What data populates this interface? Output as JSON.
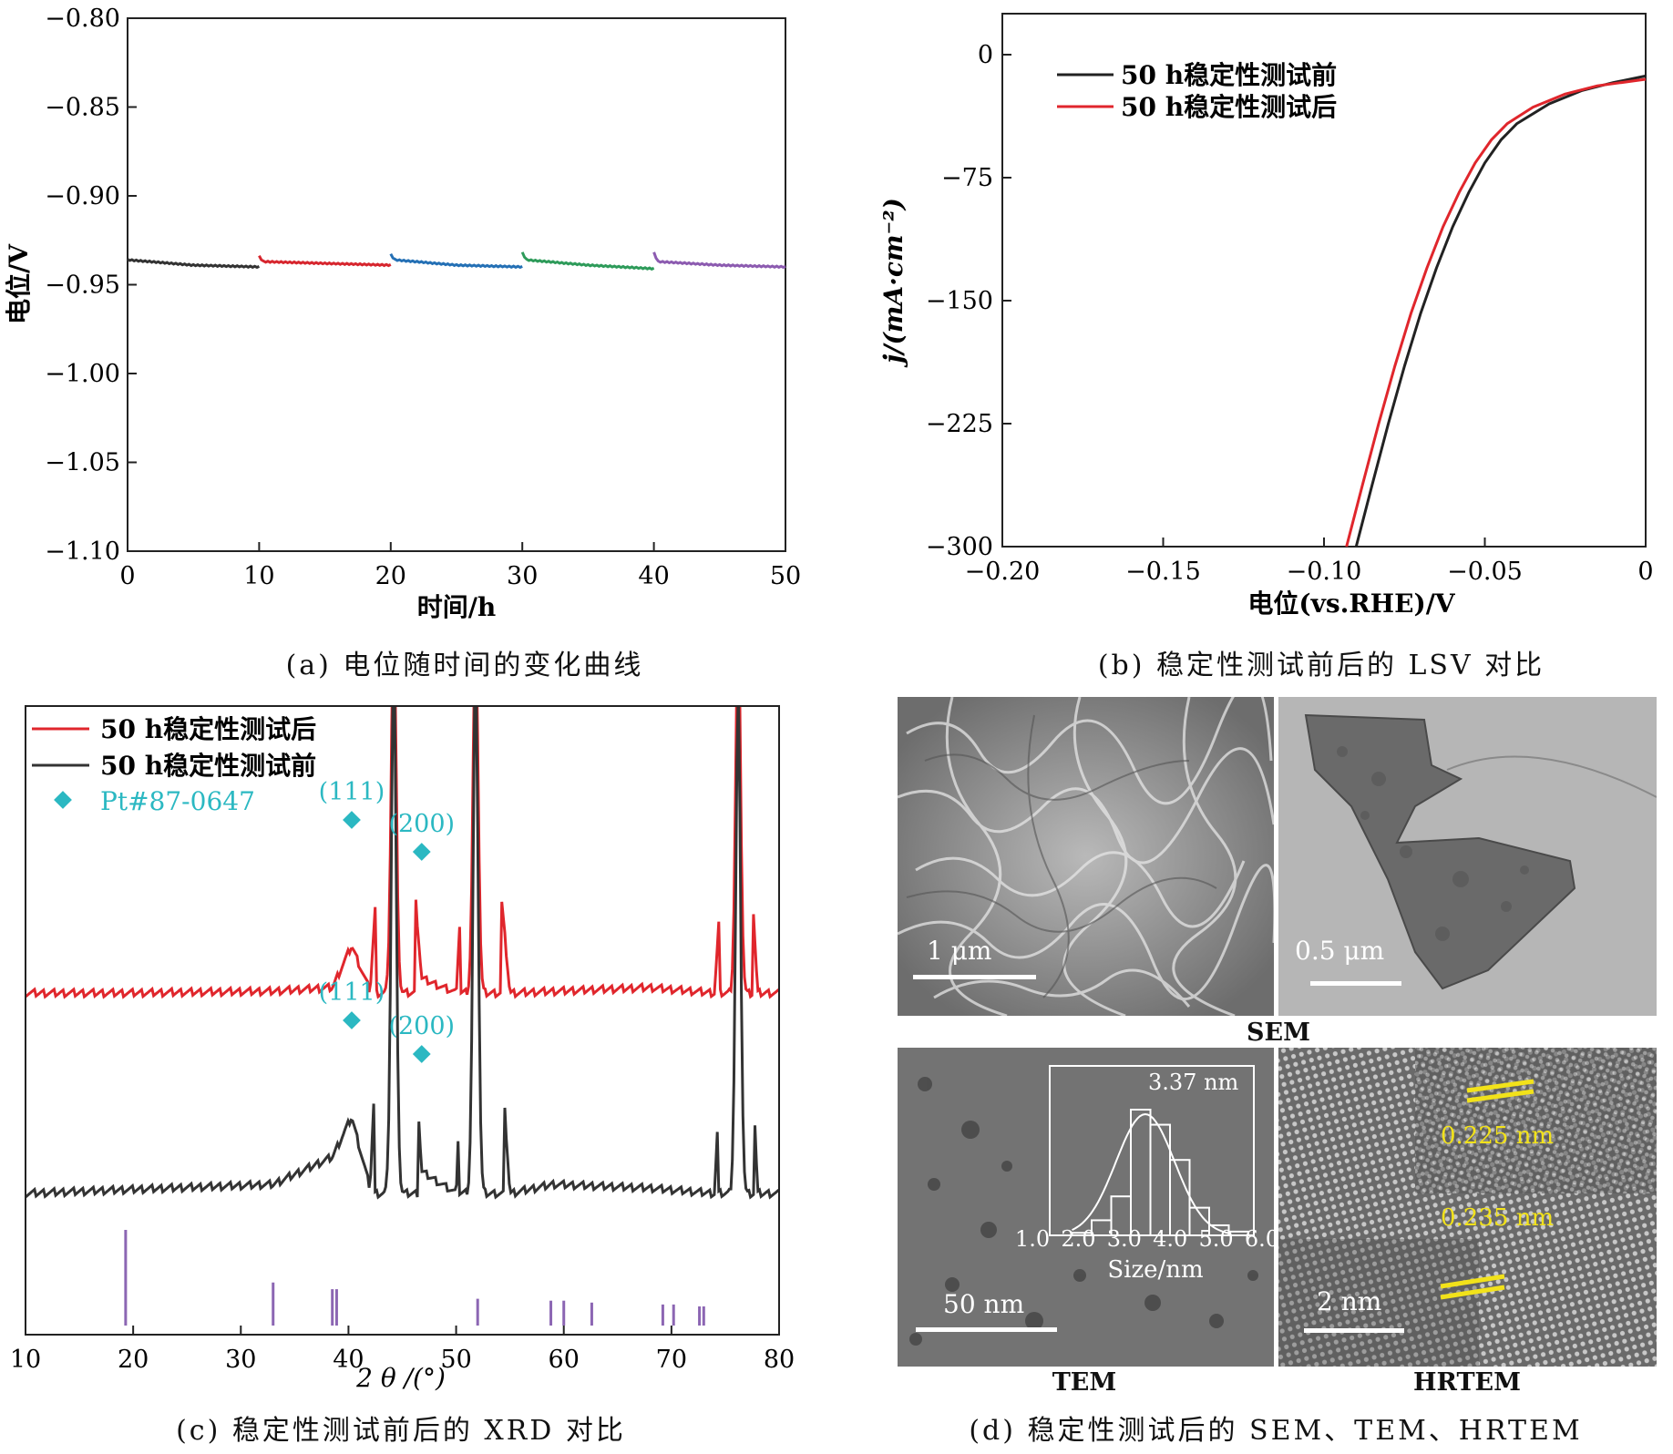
{
  "captions": {
    "a": "(a) 电位随时间的变化曲线",
    "b": "(b) 稳定性测试前后的 LSV 对比",
    "c": "(c) 稳定性测试前后的 XRD 对比",
    "d": "(d) 稳定性测试后的 SEM、TEM、HRTEM"
  },
  "chart_data": [
    {
      "id": "a",
      "type": "line",
      "xlabel": "时间/h",
      "ylabel": "电位/V",
      "xlim": [
        0,
        50
      ],
      "ylim": [
        -1.1,
        -0.8
      ],
      "xticks": [
        0,
        10,
        20,
        30,
        40,
        50
      ],
      "xtick_labels": [
        "0",
        "10",
        "20",
        "30",
        "40",
        "50"
      ],
      "yticks": [
        -0.8,
        -0.85,
        -0.9,
        -0.95,
        -1.0,
        -1.05,
        -1.1
      ],
      "ytick_labels": [
        "−0.80",
        "−0.85",
        "−0.90",
        "−0.95",
        "−1.00",
        "−1.05",
        "−1.10"
      ],
      "series": [
        {
          "color": "#333333",
          "x": [
            0,
            5,
            10
          ],
          "y": [
            -0.936,
            -0.939,
            -0.94
          ]
        },
        {
          "color": "#d7262e",
          "x": [
            10,
            10.3,
            15,
            20
          ],
          "y": [
            -0.934,
            -0.937,
            -0.938,
            -0.939
          ]
        },
        {
          "color": "#2470b5",
          "x": [
            20,
            20.3,
            25,
            30
          ],
          "y": [
            -0.933,
            -0.936,
            -0.939,
            -0.94
          ]
        },
        {
          "color": "#2e9b5a",
          "x": [
            30,
            30.3,
            35,
            40
          ],
          "y": [
            -0.932,
            -0.936,
            -0.939,
            -0.941
          ]
        },
        {
          "color": "#8c5bb0",
          "x": [
            40,
            40.3,
            45,
            50
          ],
          "y": [
            -0.932,
            -0.937,
            -0.939,
            -0.94
          ]
        }
      ]
    },
    {
      "id": "b",
      "type": "line",
      "xlabel": "电位(vs.RHE)/V",
      "ylabel": "j/(mA·cm⁻²)",
      "xlim": [
        -0.2,
        0
      ],
      "ylim": [
        -300,
        25
      ],
      "xticks": [
        -0.2,
        -0.15,
        -0.1,
        -0.05,
        0
      ],
      "xtick_labels": [
        "−0.20",
        "−0.15",
        "−0.10",
        "−0.05",
        "0"
      ],
      "yticks": [
        0,
        -75,
        -150,
        -225,
        -300
      ],
      "ytick_labels": [
        "0",
        "−75",
        "−150",
        "−225",
        "−300"
      ],
      "legend": "top-left",
      "series": [
        {
          "name": "50 h稳定性测试前",
          "color": "#222222",
          "x": [
            -0.09,
            -0.085,
            -0.08,
            -0.075,
            -0.07,
            -0.065,
            -0.06,
            -0.055,
            -0.05,
            -0.045,
            -0.04,
            -0.03,
            -0.02,
            -0.01,
            0
          ],
          "y": [
            -300,
            -262,
            -225,
            -190,
            -158,
            -130,
            -105,
            -84,
            -66,
            -52,
            -42,
            -30,
            -22,
            -17,
            -13
          ]
        },
        {
          "name": "50 h稳定性测试后",
          "color": "#e0262c",
          "x": [
            -0.093,
            -0.088,
            -0.083,
            -0.078,
            -0.073,
            -0.068,
            -0.063,
            -0.058,
            -0.053,
            -0.048,
            -0.043,
            -0.035,
            -0.025,
            -0.015,
            0
          ],
          "y": [
            -300,
            -262,
            -225,
            -190,
            -158,
            -130,
            -105,
            -84,
            -66,
            -52,
            -42,
            -32,
            -24,
            -19,
            -15
          ]
        }
      ]
    },
    {
      "id": "c",
      "type": "line",
      "xlabel": "2 θ /(°)",
      "xlim": [
        10,
        80
      ],
      "xticks": [
        10,
        20,
        30,
        40,
        50,
        60,
        70,
        80
      ],
      "xtick_labels": [
        "10",
        "20",
        "30",
        "40",
        "50",
        "60",
        "70",
        "80"
      ],
      "legend": "top-left",
      "series": [
        {
          "name": "50 h稳定性测试后",
          "color": "#e0262c",
          "x": [
            10,
            19,
            33,
            38.5,
            40.3,
            42,
            44.2,
            46.8,
            50,
            51.8,
            55,
            68,
            74,
            76.2,
            78,
            80
          ],
          "y": [
            0.92,
            0.92,
            0.93,
            0.95,
            1.18,
            0.93,
            3.0,
            1.0,
            0.92,
            3.0,
            0.92,
            0.95,
            0.92,
            3.0,
            0.92,
            0.92
          ]
        },
        {
          "name": "50 h稳定性测试前",
          "color": "#333333",
          "x": [
            10,
            19,
            33,
            38.5,
            40.3,
            42,
            44.2,
            46.8,
            50,
            51.8,
            55,
            59,
            68,
            74,
            76.2,
            78,
            80
          ],
          "y": [
            0.0,
            0.02,
            0.05,
            0.2,
            0.42,
            0.03,
            3.0,
            0.12,
            0.0,
            3.0,
            0.0,
            0.05,
            0.03,
            0.0,
            2.8,
            0.0,
            0.0
          ]
        }
      ],
      "reference": {
        "name": "Pt#87-0647",
        "color": "#8c66b3",
        "x": [
          19.3,
          33.0,
          38.5,
          38.9,
          52.0,
          58.8,
          60.0,
          62.6,
          69.2,
          70.2,
          72.6,
          73.0
        ],
        "intensity": [
          1.0,
          0.45,
          0.38,
          0.38,
          0.28,
          0.26,
          0.26,
          0.24,
          0.22,
          0.22,
          0.2,
          0.2
        ]
      },
      "markers": [
        {
          "label": "(111)",
          "x": 40.3,
          "series": "50 h稳定性测试后"
        },
        {
          "label": "(200)",
          "x": 46.8,
          "series": "50 h稳定性测试后"
        },
        {
          "label": "(111)",
          "x": 40.3,
          "series": "50 h稳定性测试前"
        },
        {
          "label": "(200)",
          "x": 46.8,
          "series": "50 h稳定性测试前"
        }
      ],
      "marker_color": "#2bb8c2"
    },
    {
      "id": "d-inset",
      "type": "bar",
      "title": "3.37 nm",
      "xlabel": "Size/nm",
      "xticks": [
        1.0,
        2.0,
        3.0,
        4.0,
        5.0,
        6.0
      ],
      "xtick_labels": [
        "1.0",
        "2.0",
        "3.0",
        "4.0",
        "5.0",
        "6.0"
      ],
      "bins": [
        1.5,
        2.0,
        2.5,
        3.0,
        3.5,
        4.0,
        4.5,
        5.0,
        5.5
      ],
      "values": [
        0.02,
        0.12,
        0.31,
        1.0,
        0.88,
        0.6,
        0.22,
        0.08,
        0.03
      ]
    }
  ],
  "legend_b": [
    "50 h稳定性测试前",
    "50 h稳定性测试后"
  ],
  "legend_c": [
    "50 h稳定性测试后",
    "50 h稳定性测试前",
    "Pt#87-0647"
  ],
  "images": {
    "sem_scale": "1 μm",
    "tem_low_scale": "0.5 μm",
    "tem_scale": "50 nm",
    "hrtem_scale": "2 nm",
    "d1": "0.225 nm",
    "d2": "0.235 nm",
    "label_sem": "SEM",
    "label_tem": "TEM",
    "label_hrtem": "HRTEM",
    "lattice_color": "#f2e21a"
  }
}
